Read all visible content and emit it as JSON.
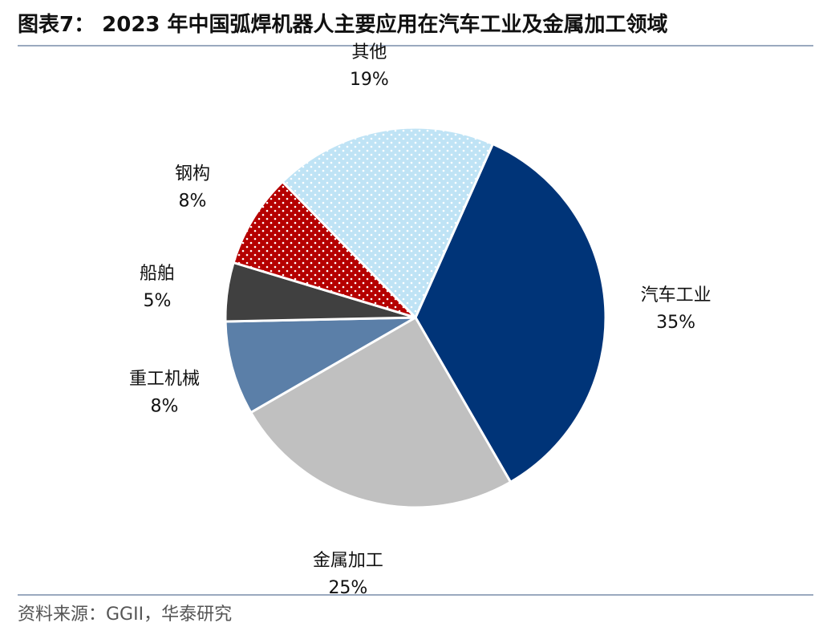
{
  "title": "图表7： 2023 年中国弧焊机器人主要应用在汽车工业及金属加工领域",
  "source": "资料来源：GGII，华泰研究",
  "chart_data": {
    "type": "pie",
    "title": "图表7： 2023 年中国弧焊机器人主要应用在汽车工业及金属加工领域",
    "start_angle_deg": 24,
    "direction": "clockwise",
    "slices": [
      {
        "label": "汽车工业",
        "value": 35,
        "display": "35%",
        "color": "#003478",
        "pattern": "none"
      },
      {
        "label": "金属加工",
        "value": 25,
        "display": "25%",
        "color": "#c0c0c0",
        "pattern": "none"
      },
      {
        "label": "重工机械",
        "value": 8,
        "display": "8%",
        "color": "#5b7fa8",
        "pattern": "none"
      },
      {
        "label": "船舶",
        "value": 5,
        "display": "5%",
        "color": "#404040",
        "pattern": "none"
      },
      {
        "label": "钢构",
        "value": 8,
        "display": "8%",
        "color": "#b50000",
        "pattern": "dots-white"
      },
      {
        "label": "其他",
        "value": 19,
        "display": "19%",
        "color": "#bfe3f5",
        "pattern": "dots-white"
      }
    ],
    "legend": "none",
    "labels": "outside"
  }
}
